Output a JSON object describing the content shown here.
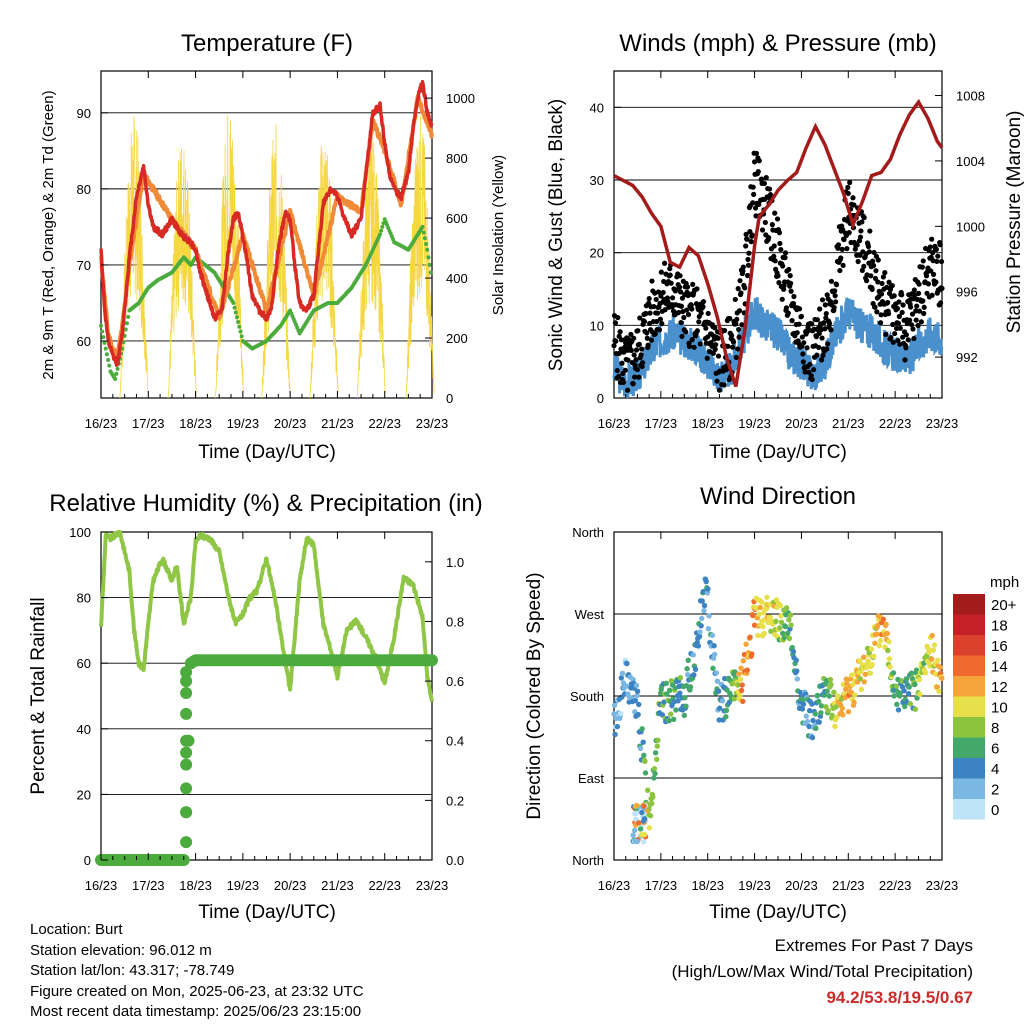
{
  "info": {
    "location": "Location: Burt",
    "elevation": "Station elevation: 96.012 m",
    "latlon": "Station lat/lon: 43.317; -78.749",
    "created": "Figure created on Mon, 2025-06-23, at 23:32 UTC",
    "recent": "Most recent data timestamp: 2025/06/23 23:15:00"
  },
  "extremes": {
    "title": "Extremes For Past 7 Days",
    "subtitle": "(High/Low/Max Wind/Total Precipitation)",
    "values": "94.2/53.8/19.5/0.67",
    "color": "#cc2b2b"
  },
  "colors": {
    "temp": "#d62a23",
    "temp9": "#f08a36",
    "dew": "#4cab3d",
    "solar": "#f5d742",
    "wind": "#4a90cc",
    "gust": "#000000",
    "pressure": "#a31b1b",
    "rh": "#8fc646",
    "precip": "#4cab3d"
  },
  "chart_data": [
    {
      "type": "line",
      "title": "Temperature (F)",
      "xlabel": "Time (Day/UTC)",
      "ylabel": "2m & 9m T (Red, Orange) & 2m Td (Green)",
      "ylabel_right": "Solar Insolation (Yellow)",
      "x_ticks": [
        "16/23",
        "17/23",
        "18/23",
        "19/23",
        "20/23",
        "21/23",
        "22/23",
        "23/23"
      ],
      "ylim": [
        52.5,
        95.5
      ],
      "y_ticks": [
        60,
        70,
        80,
        90
      ],
      "ylim_right": [
        0,
        1000
      ],
      "y_ticks_right": [
        0,
        200,
        400,
        600,
        800,
        1000
      ],
      "grid": true,
      "series": [
        {
          "name": "2m T",
          "axis": "left",
          "color": "#d62a23",
          "x": [
            0,
            0.08,
            0.15,
            0.25,
            0.35,
            0.45,
            0.6,
            0.75,
            0.9,
            1.0,
            1.1,
            1.3,
            1.5,
            1.7,
            1.9,
            2.0,
            2.1,
            2.25,
            2.4,
            2.55,
            2.7,
            2.8,
            2.9,
            3.05,
            3.2,
            3.35,
            3.5,
            3.6,
            3.75,
            3.9,
            4.0,
            4.1,
            4.2,
            4.35,
            4.5,
            4.6,
            4.7,
            4.85,
            5.0,
            5.15,
            5.3,
            5.5,
            5.6,
            5.75,
            5.9,
            6.0,
            6.1,
            6.2,
            6.35,
            6.5,
            6.6,
            6.7,
            6.8,
            6.9,
            7.0
          ],
          "y": [
            72,
            64,
            60,
            58,
            57,
            61,
            71,
            79,
            83,
            78,
            75,
            74,
            76,
            74,
            73,
            72,
            69,
            66,
            63,
            64,
            72,
            76,
            77,
            72,
            66,
            64,
            63,
            64,
            72,
            77,
            76,
            70,
            65,
            64,
            66,
            72,
            78,
            80,
            79,
            76,
            74,
            76,
            82,
            90,
            91,
            86,
            82,
            80,
            79,
            82,
            88,
            92,
            94,
            90,
            88
          ]
        },
        {
          "name": "9m T",
          "axis": "left",
          "color": "#f08a36",
          "x": [
            0,
            0.15,
            0.25,
            0.35,
            0.45,
            0.6,
            0.9,
            1.5,
            2.0,
            2.5,
            3.0,
            3.5,
            4.0,
            4.5,
            5.0,
            5.5,
            5.75,
            6.0,
            6.35,
            6.7,
            7.0
          ],
          "y": [
            71,
            61,
            59,
            58,
            62,
            70,
            82,
            76,
            72,
            63,
            74,
            64,
            77,
            66,
            79,
            77,
            89,
            85,
            78,
            92,
            87
          ]
        },
        {
          "name": "2m Td",
          "axis": "left",
          "color": "#4cab3d",
          "x": [
            0,
            0.1,
            0.2,
            0.3,
            0.45,
            0.6,
            0.8,
            1.0,
            1.2,
            1.5,
            1.75,
            1.9,
            2.0,
            2.2,
            2.4,
            2.6,
            2.8,
            3.0,
            3.2,
            3.5,
            3.8,
            4.0,
            4.2,
            4.5,
            4.8,
            5.0,
            5.3,
            5.6,
            5.9,
            6.0,
            6.2,
            6.5,
            6.7,
            6.8,
            6.9,
            7.0
          ],
          "y": [
            62,
            59,
            56,
            55,
            59,
            64,
            65,
            67,
            68,
            69,
            71,
            70,
            71,
            70,
            69,
            67,
            65,
            60,
            59,
            60,
            62,
            64,
            61,
            64,
            65,
            65,
            67,
            70,
            74,
            76,
            73,
            72,
            74,
            75,
            72,
            68
          ]
        },
        {
          "name": "Solar",
          "axis": "right",
          "peaks": [
            0.7,
            1.72,
            2.72,
            3.7,
            4.72,
            5.72,
            6.75
          ],
          "peak_values": [
            960,
            900,
            1000,
            920,
            910,
            900,
            960
          ]
        }
      ]
    },
    {
      "type": "scatter",
      "title": "Winds (mph) & Pressure (mb)",
      "xlabel": "Time (Day/UTC)",
      "ylabel": "Sonic Wind & Gust (Blue, Black)",
      "ylabel_right": "Station Pressure (Maroon)",
      "x_ticks": [
        "16/23",
        "17/23",
        "18/23",
        "19/23",
        "20/23",
        "21/23",
        "22/23",
        "23/23"
      ],
      "ylim": [
        0,
        45
      ],
      "y_ticks": [
        0,
        10,
        20,
        30,
        40
      ],
      "ylim_right": [
        989.5,
        1009.5
      ],
      "y_ticks_right": [
        992,
        996,
        1000,
        1004,
        1008
      ],
      "grid": true,
      "series": [
        {
          "name": "Wind",
          "color": "#4a90cc",
          "x": [
            0,
            0.25,
            0.5,
            0.75,
            1.0,
            1.25,
            1.5,
            1.75,
            2.0,
            2.25,
            2.5,
            2.75,
            3.0,
            3.25,
            3.5,
            3.75,
            4.0,
            4.25,
            4.5,
            4.75,
            5.0,
            5.25,
            5.5,
            5.75,
            6.0,
            6.25,
            6.5,
            6.75,
            7.0
          ],
          "y": [
            4,
            2,
            3,
            6,
            8,
            9,
            8,
            7,
            5,
            3,
            4,
            8,
            12,
            10,
            9,
            6,
            5,
            3,
            5,
            9,
            12,
            10,
            9,
            7,
            6,
            5,
            7,
            9,
            8
          ]
        },
        {
          "name": "Gust",
          "color": "#000000",
          "x": [
            0,
            0.25,
            0.5,
            0.75,
            1.0,
            1.25,
            1.5,
            1.75,
            2.0,
            2.25,
            2.5,
            2.75,
            3.0,
            3.25,
            3.5,
            3.75,
            4.0,
            4.25,
            4.5,
            4.75,
            5.0,
            5.25,
            5.5,
            5.75,
            6.0,
            6.25,
            6.5,
            6.75,
            7.0
          ],
          "y": [
            8,
            4,
            6,
            11,
            14,
            15,
            12,
            11,
            9,
            5,
            7,
            14,
            30,
            26,
            20,
            13,
            9,
            6,
            10,
            17,
            26,
            22,
            18,
            13,
            12,
            9,
            14,
            18,
            17
          ]
        },
        {
          "name": "Pressure",
          "color": "#a31b1b",
          "x": [
            0,
            0.2,
            0.4,
            0.6,
            0.8,
            1.0,
            1.2,
            1.4,
            1.6,
            1.8,
            2.0,
            2.2,
            2.4,
            2.6,
            2.8,
            3.0,
            3.1,
            3.3,
            3.5,
            3.7,
            3.9,
            4.1,
            4.3,
            4.5,
            4.7,
            4.9,
            5.1,
            5.3,
            5.5,
            5.7,
            5.9,
            6.1,
            6.3,
            6.5,
            6.7,
            6.9,
            7.0
          ],
          "y": [
            1003.1,
            1002.8,
            1002.5,
            1001.8,
            1000.8,
            1000.0,
            997.8,
            997.5,
            998.7,
            998.2,
            996.5,
            994.5,
            992.0,
            990.2,
            993.8,
            998.8,
            1000.6,
            1001.3,
            1002.2,
            1002.8,
            1003.3,
            1004.8,
            1006.1,
            1005.0,
            1003.5,
            1002.0,
            1000.1,
            1001.5,
            1003.1,
            1003.3,
            1004.1,
            1005.6,
            1006.8,
            1007.6,
            1006.6,
            1005.2,
            1004.8
          ]
        }
      ]
    },
    {
      "type": "line",
      "title": "Relative Humidity (%) & Precipitation (in)",
      "xlabel": "Time (Day/UTC)",
      "ylabel": "Percent & Total Rainfall",
      "x_ticks": [
        "16/23",
        "17/23",
        "18/23",
        "19/23",
        "20/23",
        "21/23",
        "22/23",
        "23/23"
      ],
      "ylim": [
        0,
        100
      ],
      "y_ticks": [
        0,
        20,
        40,
        60,
        80,
        100
      ],
      "ylim_right": [
        0,
        1.1
      ],
      "y_ticks_right": [
        "0.0",
        "0.2",
        "0.4",
        "0.6",
        "0.8",
        "1.0"
      ],
      "grid": true,
      "series": [
        {
          "name": "RH",
          "color": "#8fc646",
          "x": [
            0,
            0.1,
            0.2,
            0.4,
            0.6,
            0.7,
            0.8,
            0.9,
            1.0,
            1.1,
            1.3,
            1.5,
            1.6,
            1.75,
            1.9,
            2.0,
            2.1,
            2.3,
            2.5,
            2.7,
            2.85,
            3.0,
            3.15,
            3.3,
            3.5,
            3.7,
            3.9,
            4.0,
            4.2,
            4.35,
            4.5,
            4.7,
            4.9,
            5.0,
            5.2,
            5.4,
            5.6,
            5.8,
            6.0,
            6.2,
            6.4,
            6.6,
            6.8,
            6.9,
            7.0
          ],
          "y": [
            71,
            99,
            98,
            100,
            88,
            70,
            60,
            58,
            72,
            85,
            92,
            85,
            90,
            72,
            80,
            97,
            99,
            98,
            94,
            80,
            72,
            75,
            80,
            82,
            92,
            78,
            60,
            52,
            85,
            98,
            96,
            72,
            62,
            56,
            70,
            73,
            68,
            62,
            54,
            68,
            86,
            84,
            74,
            56,
            48
          ]
        },
        {
          "name": "Precip",
          "color": "#4cab3d",
          "x": [
            0,
            0.5,
            1.0,
            1.5,
            1.75,
            1.78,
            1.8,
            1.82,
            1.85,
            1.88,
            1.9,
            2.0,
            3.0,
            4.0,
            5.0,
            6.0,
            7.0
          ],
          "y": [
            0,
            0,
            0,
            0,
            0,
            0.06,
            0.16,
            0.28,
            0.4,
            0.56,
            0.66,
            0.67,
            0.67,
            0.67,
            0.67,
            0.67,
            0.67
          ]
        }
      ]
    },
    {
      "type": "scatter",
      "title": "Wind Direction",
      "xlabel": "Time (Day/UTC)",
      "ylabel": "Direction (Colored By Speed)",
      "x_ticks": [
        "16/23",
        "17/23",
        "18/23",
        "19/23",
        "20/23",
        "21/23",
        "22/23",
        "23/23"
      ],
      "y_ticks": [
        "North",
        "East",
        "South",
        "West",
        "North"
      ],
      "ylim": [
        0,
        360
      ],
      "legend_title": "mph",
      "legend_labels": [
        "20+",
        "18",
        "16",
        "14",
        "12",
        "10",
        "8",
        "6",
        "4",
        "2",
        "0"
      ],
      "legend_colors": [
        "#a31b1b",
        "#c42026",
        "#d9412c",
        "#ef6a2c",
        "#f5a43a",
        "#e8e04a",
        "#8cc43f",
        "#43a86a",
        "#3d83c2",
        "#7ab7e3",
        "#bde5f7"
      ],
      "legend_placement": "right",
      "series": [
        {
          "name": "direction",
          "x": [
            0,
            0.25,
            0.5,
            0.75,
            1.0,
            1.25,
            1.5,
            1.75,
            1.95,
            2.25,
            2.5,
            2.75,
            3.0,
            3.25,
            3.5,
            3.75,
            4.0,
            4.25,
            4.5,
            4.75,
            5.0,
            5.25,
            5.5,
            5.75,
            6.0,
            6.25,
            6.5,
            6.75,
            7.0
          ],
          "y": [
            150,
            200,
            170,
            50,
            170,
            175,
            180,
            230,
            300,
            170,
            185,
            195,
            265,
            270,
            265,
            255,
            170,
            150,
            190,
            160,
            185,
            200,
            230,
            260,
            190,
            180,
            190,
            230,
            195
          ],
          "speed": [
            2,
            3,
            3,
            9,
            6,
            6,
            5,
            4,
            3,
            4,
            6,
            12,
            12,
            10,
            9,
            6,
            4,
            3,
            6,
            10,
            12,
            10,
            9,
            12,
            6,
            5,
            8,
            9,
            12
          ]
        }
      ]
    }
  ]
}
